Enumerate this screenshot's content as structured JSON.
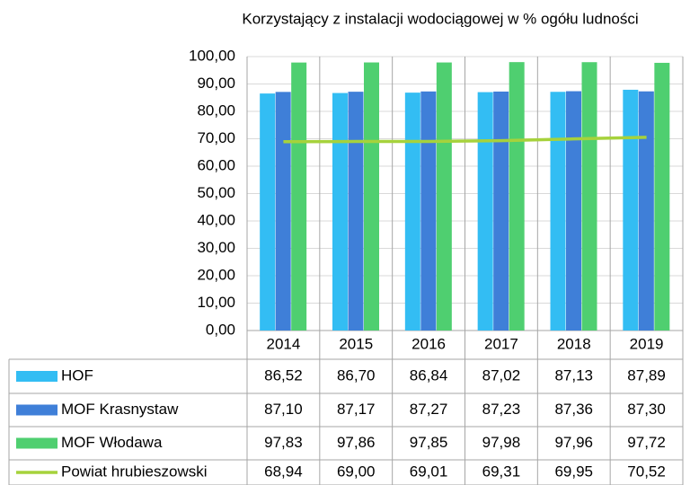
{
  "chart_data": {
    "type": "bar",
    "title": "Korzystający z instalacji wodociągowej w % ogółu ludności",
    "categories": [
      "2014",
      "2015",
      "2016",
      "2017",
      "2018",
      "2019"
    ],
    "series": [
      {
        "name": "HOF",
        "color": "#33bdf3",
        "values": [
          86.52,
          86.7,
          86.84,
          87.02,
          87.13,
          87.89
        ],
        "value_labels": [
          "86,52",
          "86,70",
          "86,84",
          "87,02",
          "87,13",
          "87,89"
        ]
      },
      {
        "name": "MOF Krasnystaw",
        "color": "#3f7fd8",
        "values": [
          87.1,
          87.17,
          87.27,
          87.23,
          87.36,
          87.3
        ],
        "value_labels": [
          "87,10",
          "87,17",
          "87,27",
          "87,23",
          "87,36",
          "87,30"
        ]
      },
      {
        "name": "MOF Włodawa",
        "color": "#4fcf70",
        "values": [
          97.83,
          97.86,
          97.85,
          97.98,
          97.96,
          97.72
        ],
        "value_labels": [
          "97,83",
          "97,86",
          "97,85",
          "97,98",
          "97,96",
          "97,72"
        ]
      },
      {
        "name": "Powiat hrubieszowski",
        "color": "#a6d23c",
        "type": "line",
        "values": [
          68.94,
          69.0,
          69.01,
          69.31,
          69.95,
          70.52
        ],
        "value_labels": [
          "68,94",
          "69,00",
          "69,01",
          "69,31",
          "69,95",
          "70,52"
        ]
      }
    ],
    "ylim": [
      0,
      100
    ],
    "yticks": [
      {
        "value": 0,
        "label": "0,00"
      },
      {
        "value": 10,
        "label": "10,00"
      },
      {
        "value": 20,
        "label": "20,00"
      },
      {
        "value": 30,
        "label": "30,00"
      },
      {
        "value": 40,
        "label": "40,00"
      },
      {
        "value": 50,
        "label": "50,00"
      },
      {
        "value": 60,
        "label": "60,00"
      },
      {
        "value": 70,
        "label": "70,00"
      },
      {
        "value": 80,
        "label": "80,00"
      },
      {
        "value": 90,
        "label": "90,00"
      },
      {
        "value": 100,
        "label": "100,00"
      }
    ],
    "grid": true
  }
}
